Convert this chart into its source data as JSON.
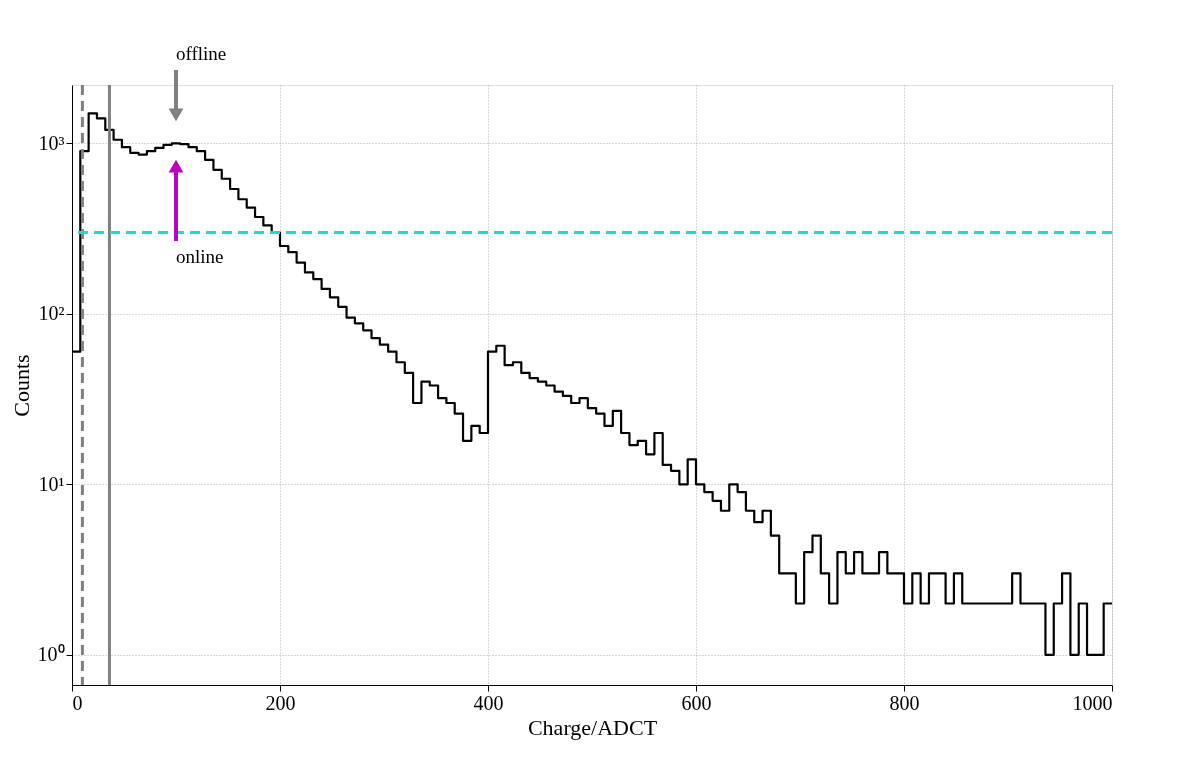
{
  "chart_data": {
    "type": "histogram",
    "xlabel": "Charge/ADCT",
    "ylabel": "Counts",
    "bins": [
      0,
      8,
      16,
      24,
      32,
      40,
      48,
      56,
      64,
      72,
      80,
      88,
      96,
      104,
      112,
      120,
      128,
      136,
      144,
      152,
      160,
      168,
      176,
      184,
      192,
      200,
      208,
      216,
      224,
      232,
      240,
      248,
      256,
      264,
      272,
      280,
      288,
      296,
      304,
      312,
      320,
      328,
      336,
      344,
      352,
      360,
      368,
      376,
      384,
      392,
      400,
      408,
      416,
      424,
      432,
      440,
      448,
      456,
      464,
      472,
      480,
      488,
      496,
      504,
      512,
      520,
      528,
      536,
      544,
      552,
      560,
      568,
      576,
      584,
      592,
      600,
      608,
      616,
      624,
      632,
      640,
      648,
      656,
      664,
      672,
      680,
      688,
      696,
      704,
      712,
      720,
      728,
      736,
      744,
      752,
      760,
      768,
      776,
      784,
      792,
      800,
      808,
      816,
      824,
      832,
      840,
      848,
      856,
      864,
      872,
      880,
      888,
      896,
      904,
      912,
      920,
      928,
      936,
      944,
      952,
      960,
      968,
      976,
      984,
      992,
      1000
    ],
    "values": [
      60,
      900,
      1500,
      1400,
      1200,
      1050,
      950,
      880,
      860,
      900,
      940,
      980,
      1000,
      990,
      950,
      900,
      800,
      700,
      620,
      540,
      470,
      420,
      370,
      330,
      300,
      250,
      230,
      200,
      175,
      160,
      140,
      125,
      110,
      95,
      88,
      80,
      72,
      66,
      60,
      52,
      45,
      30,
      40,
      38,
      32,
      30,
      26,
      18,
      22,
      20,
      60,
      65,
      50,
      52,
      45,
      42,
      40,
      38,
      35,
      33,
      30,
      32,
      28,
      26,
      22,
      27,
      20,
      17,
      18,
      15,
      20,
      13,
      12,
      10,
      14,
      10,
      9,
      8,
      7,
      10,
      9,
      7,
      6,
      7,
      5,
      3,
      3,
      2,
      4,
      5,
      3,
      2,
      4,
      3,
      4,
      3,
      3,
      4,
      3,
      3,
      2,
      3,
      2,
      3,
      3,
      2,
      3,
      2,
      2,
      2,
      2,
      2,
      2,
      3,
      2,
      2,
      2,
      1,
      2,
      3,
      1,
      2,
      1,
      1,
      2
    ],
    "color": "#000000",
    "xlim": [
      0,
      1000
    ],
    "xticks": [
      0,
      200,
      400,
      600,
      800,
      {
        "value": 1000,
        "label": "1000"
      }
    ],
    "ylim": [
      0.665,
      2200
    ],
    "log": true,
    "yticks": [
      {
        "value": 1,
        "label": "10⁰"
      },
      {
        "value": 10,
        "label": "10¹"
      },
      {
        "value": 100,
        "label": "10²"
      },
      {
        "value": 1000,
        "label": "10³"
      }
    ],
    "grid": true,
    "ref_lines": [
      {
        "axis": "x",
        "value": 10,
        "color": "#808080",
        "line_style": "dashed"
      },
      {
        "axis": "x",
        "value": 36,
        "color": "#808080",
        "line_style": "solid"
      },
      {
        "axis": "y",
        "value": 300,
        "color": "#00e5ee",
        "line_style": "dashed"
      }
    ],
    "annotations": [
      "offline",
      "online"
    ]
  }
}
